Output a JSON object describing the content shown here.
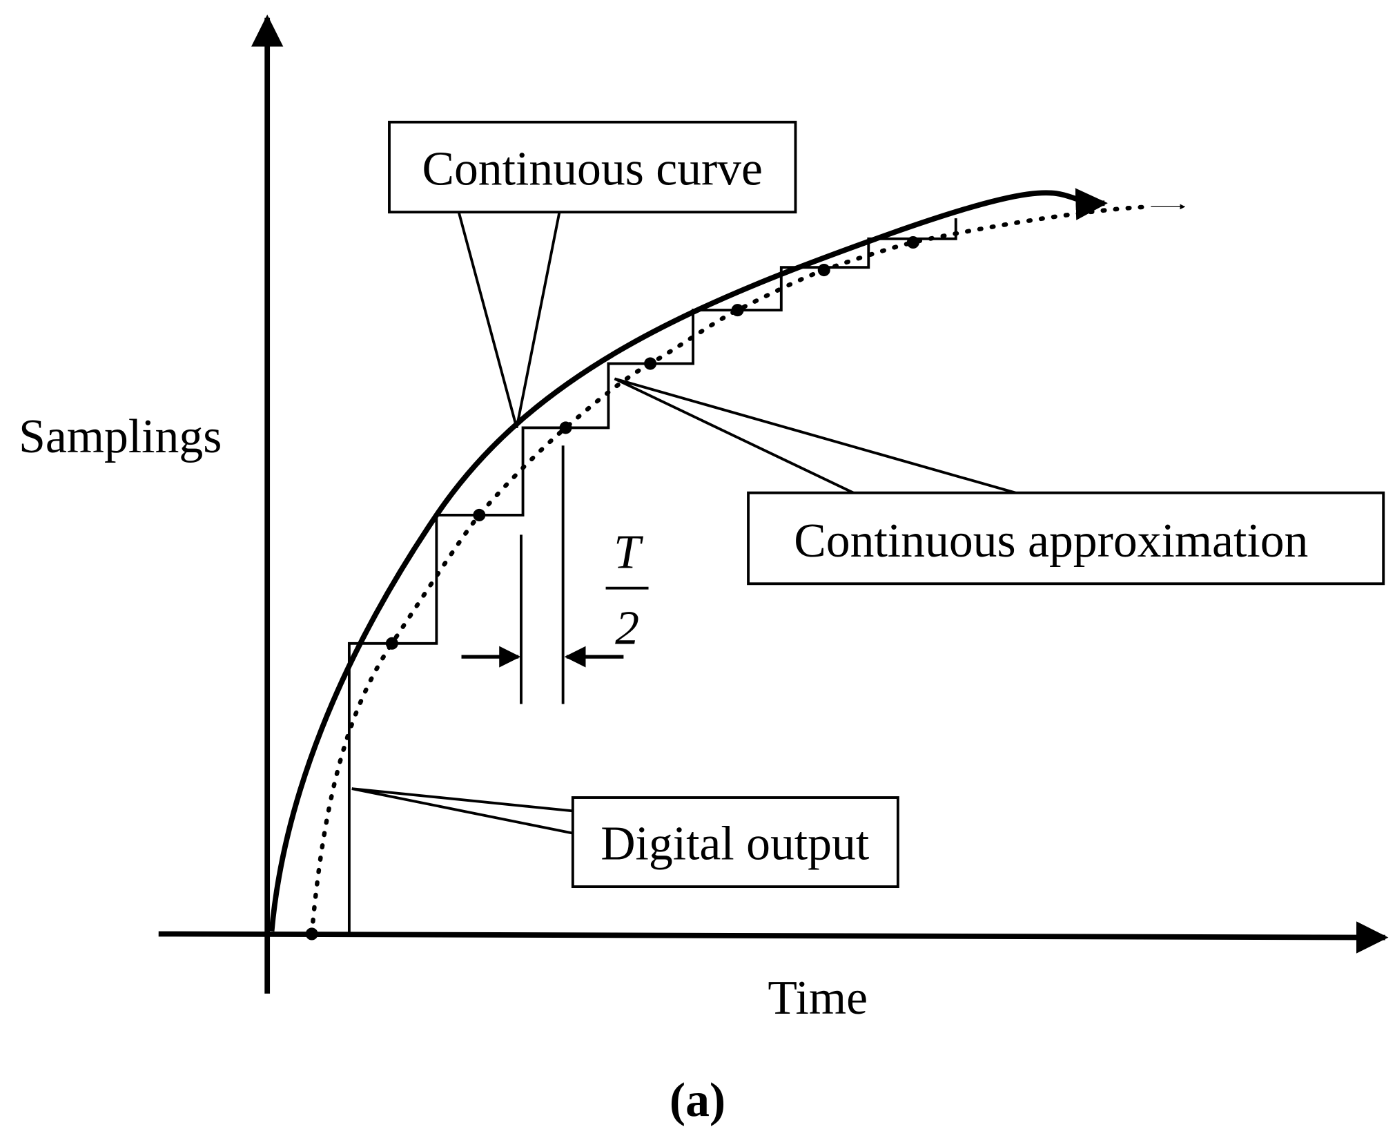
{
  "y_axis_label": "Samplings",
  "x_axis_label": "Time",
  "callouts": {
    "continuous_curve": "Continuous curve",
    "continuous_approximation": "Continuous approximation",
    "digital_output": "Digital output"
  },
  "interval": {
    "numerator": "T",
    "denominator": "2"
  },
  "caption": "(a)"
}
